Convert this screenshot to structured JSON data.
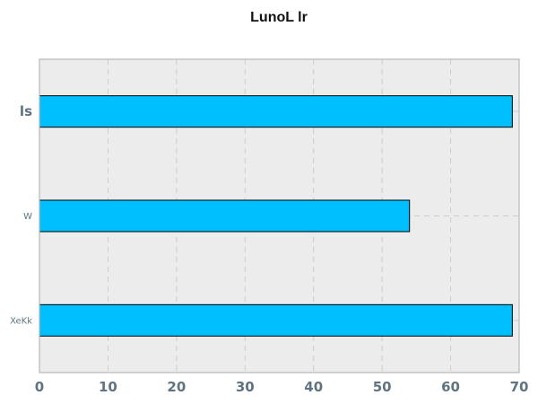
{
  "chart_data": {
    "type": "bar",
    "orientation": "horizontal",
    "title": "LunoL lr",
    "xlabel": "",
    "ylabel": "",
    "categories": [
      "ls",
      "W",
      "XeKk"
    ],
    "values": [
      69,
      54,
      69
    ],
    "xlim": [
      0,
      70
    ],
    "xticks": [
      0,
      10,
      20,
      30,
      40,
      50,
      60,
      70
    ],
    "grid": true,
    "legend": false
  },
  "colors": {
    "bar": "#00bfff",
    "bar_edge": "#000000",
    "plot_background": "#ececec",
    "grid": "#cccccc",
    "axis_frame": "#b7b7b7",
    "tick_text": "#5f7480"
  }
}
